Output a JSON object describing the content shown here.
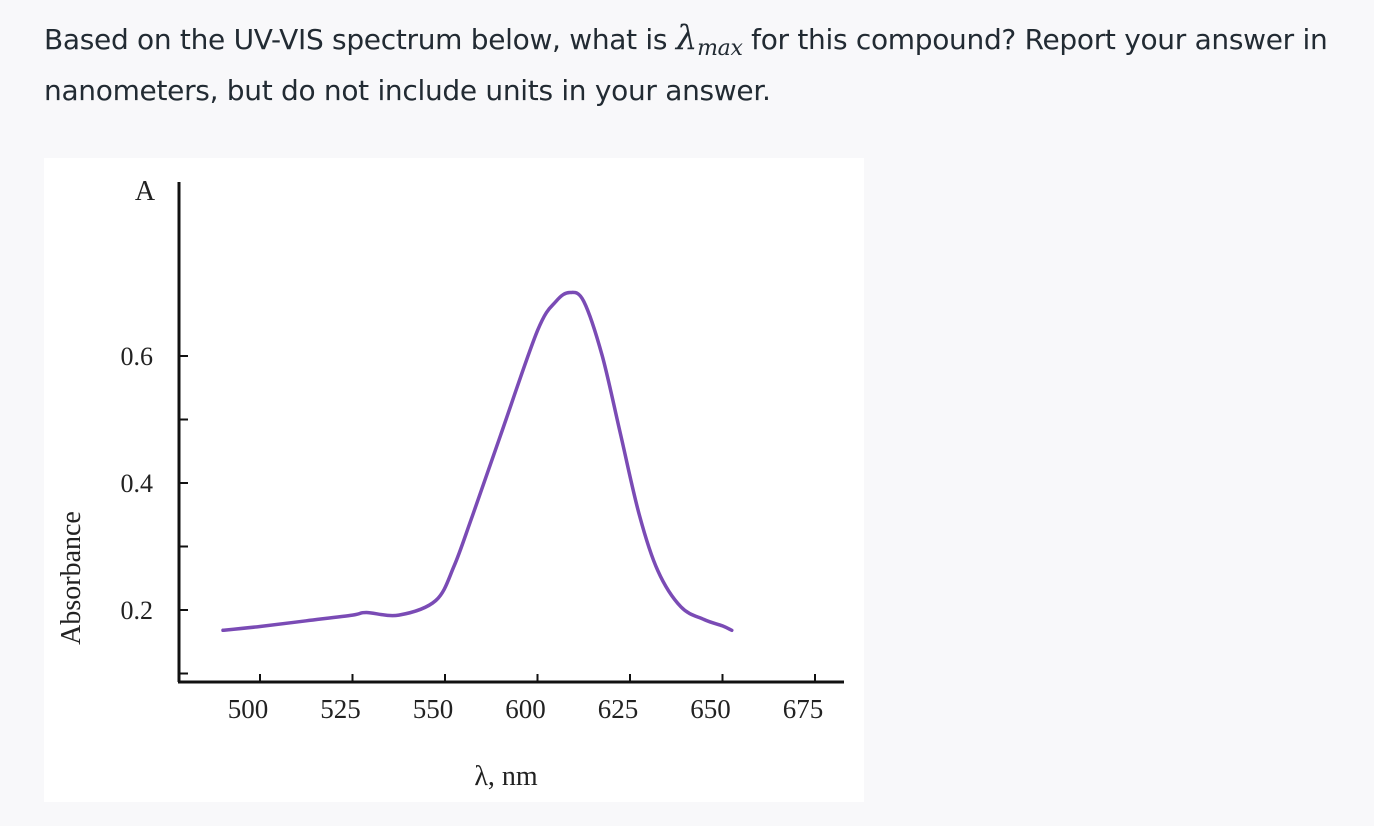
{
  "question": {
    "before": "Based on the UV-VIS spectrum below, what is ",
    "lambda_symbol": "λ",
    "lambda_subscript": "max",
    "after": " for this compound?  Report your answer in nanometers, but do not include units in your answer."
  },
  "chart_data": {
    "type": "line",
    "title": "",
    "xlabel": "λ, nm",
    "ylabel": "Absorbance",
    "y_axis_top_label": "A",
    "x_tick_labels": [
      "500",
      "525",
      "550",
      "600",
      "625",
      "650",
      "675"
    ],
    "y_tick_labels": [
      "0.2",
      "0.4",
      "0.6"
    ],
    "y_minor_ticks": [
      0.1,
      0.3,
      0.5
    ],
    "ylim": [
      0,
      0.8
    ],
    "note": "x tick labels are non-uniform as printed; x values below are in tick-index units (0 = '500', 6 = '675')",
    "series": [
      {
        "color": "#7a4bb5",
        "x": [
          -0.4,
          0.0,
          0.5,
          1.0,
          1.15,
          1.5,
          1.9,
          2.1,
          2.3,
          2.6,
          3.0,
          3.2,
          3.35,
          3.5,
          3.7,
          3.9,
          4.1,
          4.3,
          4.55,
          4.8,
          5.0,
          5.1
        ],
        "y": [
          0.168,
          0.174,
          0.183,
          0.192,
          0.196,
          0.192,
          0.215,
          0.27,
          0.35,
          0.475,
          0.64,
          0.686,
          0.7,
          0.686,
          0.6,
          0.475,
          0.35,
          0.262,
          0.205,
          0.185,
          0.175,
          0.168
        ]
      }
    ],
    "grid": false
  }
}
